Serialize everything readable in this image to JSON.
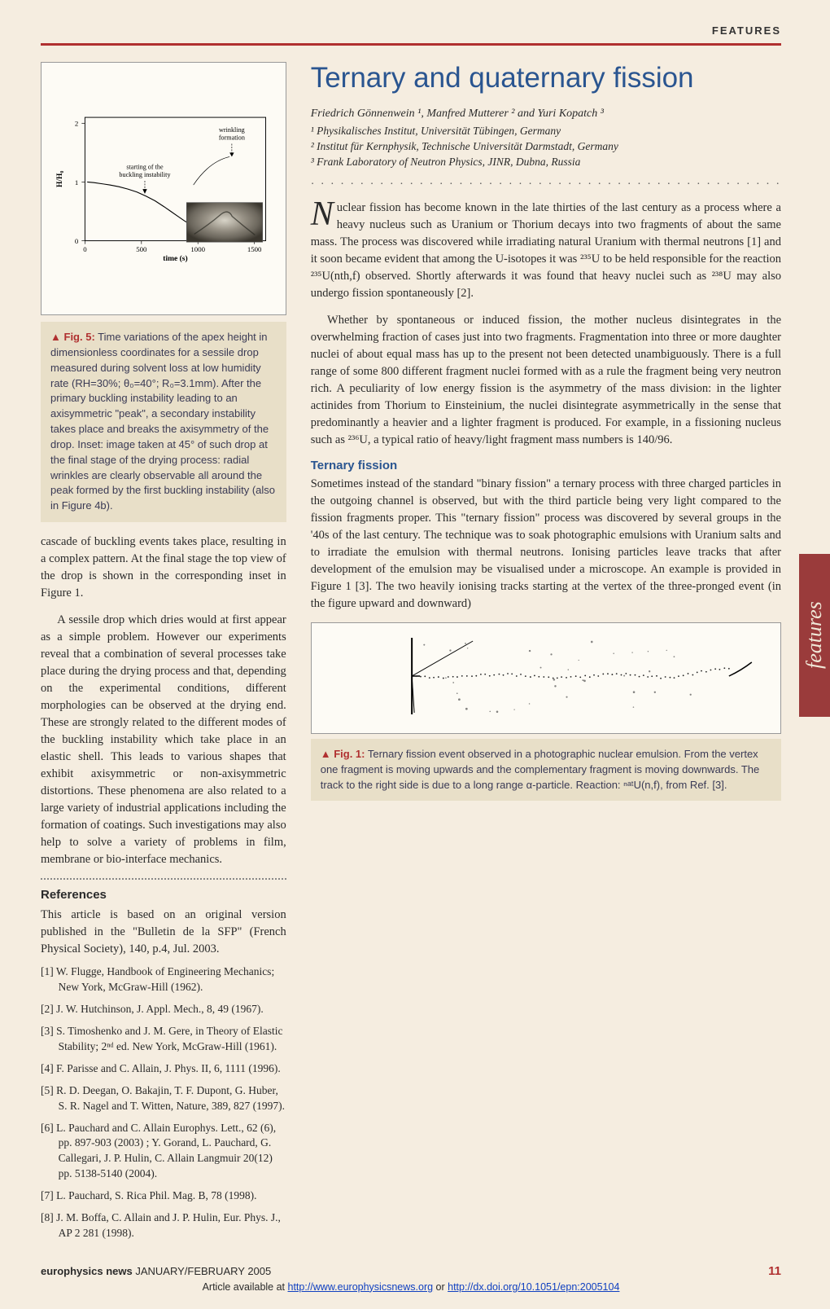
{
  "header": {
    "label": "FEATURES"
  },
  "sideTab": "features",
  "fig5": {
    "type": "line",
    "xlabel": "time (s)",
    "ylabel": "H/H₀",
    "xlim": [
      0,
      1600
    ],
    "xticks": [
      0,
      500,
      1000,
      1500
    ],
    "ylim": [
      0,
      2.1
    ],
    "yticks": [
      0,
      1,
      2
    ],
    "label_fontsize": 14,
    "background_color": "#fdfbf5",
    "axis_color": "#000000",
    "curve_color": "#000000",
    "curve": [
      [
        20,
        1.0
      ],
      [
        80,
        0.99
      ],
      [
        150,
        0.97
      ],
      [
        220,
        0.95
      ],
      [
        300,
        0.92
      ],
      [
        380,
        0.88
      ],
      [
        460,
        0.83
      ],
      [
        540,
        0.76
      ],
      [
        620,
        0.68
      ],
      [
        700,
        0.58
      ],
      [
        760,
        0.5
      ],
      [
        820,
        0.42
      ],
      [
        880,
        0.34
      ],
      [
        940,
        0.27
      ],
      [
        1000,
        0.21
      ],
      [
        1060,
        0.16
      ],
      [
        1120,
        0.12
      ],
      [
        1180,
        0.09
      ],
      [
        1240,
        0.07
      ],
      [
        1300,
        0.055
      ],
      [
        1380,
        0.045
      ],
      [
        1500,
        0.04
      ]
    ],
    "annotations": {
      "wrinkling": "wrinkling\nformation",
      "buckling": "starting of the\nbuckling instability"
    },
    "inset_gradient": [
      "#d8d4c8",
      "#9a9488",
      "#6b665c",
      "#3a362e"
    ]
  },
  "fig5_caption": {
    "tri": "▲",
    "label": "Fig. 5:",
    "text": " Time variations of the apex height in dimensionless coordinates for a sessile drop measured during solvent loss at low humidity rate (RH=30%; θ₀=40°; R₀=3.1mm). After the primary buckling instability leading to an axisymmetric \"peak\", a secondary instability takes place and breaks the axisymmetry of the drop. Inset: image taken at 45° of such drop at the final stage of the drying process: radial wrinkles are clearly observable all around the peak formed by the first buckling instability (also in Figure 4b)."
  },
  "left_body": {
    "p1": "cascade of buckling events takes place, resulting in a complex pattern. At the final stage the top view of the drop is shown in the corresponding inset in Figure 1.",
    "p2": "A sessile drop which dries would at first appear as a simple problem. However our experiments reveal that a combination of several processes take place during the drying process and that, depending on the experimental conditions, different morphologies can be observed at the drying end. These are strongly related to the different modes of the buckling instability which take place in an elastic shell. This leads to various shapes that exhibit axisymmetric or non-axisymmetric distortions. These phenomena are also related to a large variety of industrial applications including the formation of coatings. Such investigations may also help to solve a variety of problems in film, membrane or bio-interface mechanics."
  },
  "refs": {
    "head": "References",
    "intro": "This article is based on an original version published in the \"Bulletin de la SFP\" (French Physical Society), 140, p.4, Jul. 2003.",
    "items": [
      "[1] W. Flugge, Handbook of Engineering Mechanics; New York, McGraw-Hill (1962).",
      "[2] J. W. Hutchinson, J. Appl. Mech., 8, 49 (1967).",
      "[3] S. Timoshenko and J. M. Gere, in Theory of Elastic Stability; 2ⁿᵈ ed. New York, McGraw-Hill (1961).",
      "[4] F. Parisse and C. Allain, J. Phys. II, 6, 1111 (1996).",
      "[5] R. D. Deegan, O. Bakajin, T. F. Dupont, G. Huber, S. R. Nagel and T. Witten, Nature, 389, 827 (1997).",
      "[6] L. Pauchard and C. Allain Europhys. Lett., 62 (6), pp. 897-903 (2003) ; Y. Gorand, L. Pauchard, G. Callegari, J. P. Hulin, C. Allain Langmuir 20(12) pp. 5138-5140 (2004).",
      "[7] L. Pauchard, S. Rica Phil. Mag. B, 78 (1998).",
      "[8] J. M. Boffa, C. Allain and J. P. Hulin, Eur. Phys. J., AP 2 281 (1998)."
    ]
  },
  "article": {
    "title": "Ternary and quaternary fission",
    "authors": "Friedrich Gönnenwein ¹, Manfred Mutterer ² and Yuri Kopatch ³",
    "affils": [
      "¹ Physikalisches Institut, Universität Tübingen, Germany",
      "² Institut für Kernphysik, Technische Universität Darmstadt, Germany",
      "³ Frank Laboratory of Neutron Physics, JINR, Dubna, Russia"
    ],
    "p1a": "N",
    "p1b": "uclear fission has become known in the late thirties of the last century as a process where a heavy nucleus such as Uranium or Thorium decays into two fragments of about the same mass. The process was discovered while irradiating natural Uranium with thermal neutrons [1] and it soon became evident that among the U-isotopes it was ²³⁵U to be held responsible for the reaction ²³⁵U(nth,f) observed. Shortly afterwards it was found that heavy nuclei such as ²³⁸U may also undergo fission spontaneously [2].",
    "p2": "Whether by spontaneous or induced fission, the mother nucleus disintegrates in the overwhelming fraction of cases just into two fragments. Fragmentation into three or more daughter nuclei of about equal mass has up to the present not been detected unambiguously. There is a full range of some 800 different fragment nuclei formed with as a rule the fragment being very neutron rich. A peculiarity of low energy fission is the asymmetry of the mass division: in the lighter actinides from Thorium to Einsteinium, the nuclei disintegrate asymmetrically in the sense that predominantly a heavier and a lighter fragment is produced. For example, in a fissioning nucleus such as ²³⁶U, a typical ratio of heavy/light fragment mass numbers is 140/96.",
    "sec_head": "Ternary fission",
    "p3": "Sometimes instead of the standard \"binary fission\" a ternary process with three charged particles in the outgoing channel is observed, but with the third particle being very light compared to the fission fragments proper. This \"ternary fission\" process was discovered by several groups in the '40s of the last century. The technique was to soak photographic emulsions with Uranium salts and to irradiate the emulsion with thermal neutrons. Ionising particles leave tracks that after development of the emulsion may be visualised under a microscope. An example is provided in Figure 1 [3]. The two heavily ionising tracks starting at the vertex of the three-pronged event (in the figure upward and downward)"
  },
  "fig1_caption": {
    "tri": "▲",
    "label": "Fig. 1:",
    "text": " Ternary fission event observed in a photographic nuclear emulsion. From the vertex one fragment is moving upwards and the complementary fragment is moving downwards. The track to the right side is due to a long range α-particle. Reaction: ⁿᵃᵗU(n,f), from Ref. [3]."
  },
  "footer": {
    "left_bold": "europhysics news",
    "left_rest": " JANUARY/FEBRUARY 2005",
    "page": "11",
    "avail_pre": "Article available at ",
    "url1": "http://www.europhysicsnews.org",
    "avail_mid": " or ",
    "url2": "http://dx.doi.org/10.1051/epn:2005104"
  }
}
